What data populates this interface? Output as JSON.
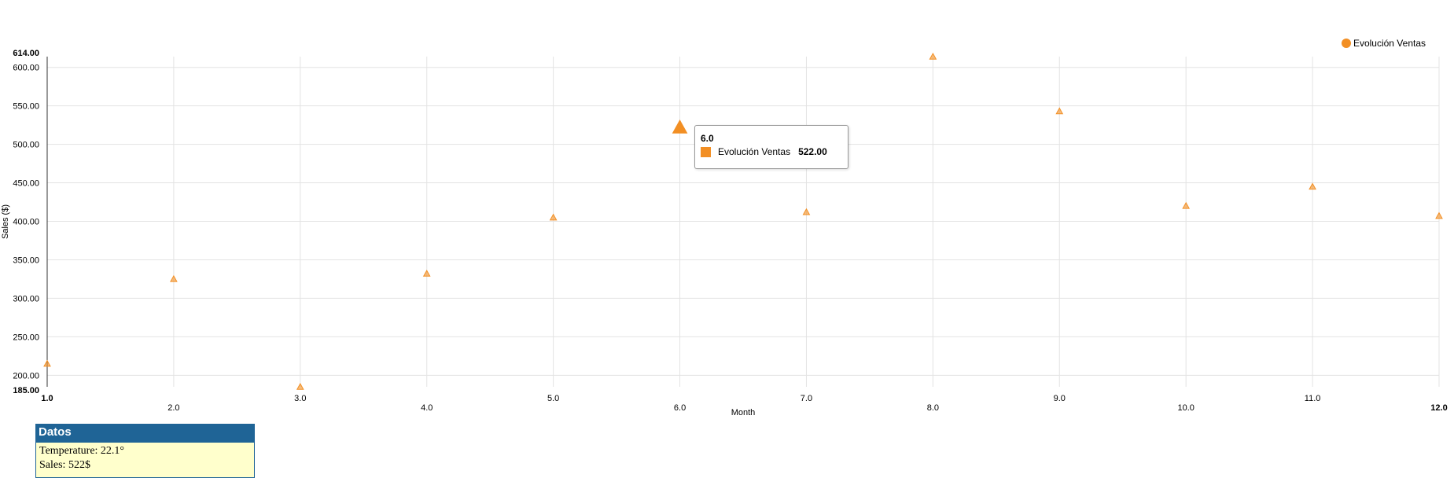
{
  "chart_data": {
    "type": "scatter",
    "xlabel": "Month",
    "ylabel": "Sales ($)",
    "xlim": [
      1.0,
      12.0
    ],
    "ylim": [
      185.0,
      614.0
    ],
    "grid": true,
    "legend_position": "top-right",
    "x_ticks": [
      "1.0",
      "2.0",
      "3.0",
      "4.0",
      "5.0",
      "6.0",
      "7.0",
      "8.0",
      "9.0",
      "10.0",
      "11.0",
      "12.0"
    ],
    "y_ticks": [
      "200.00",
      "250.00",
      "300.00",
      "350.00",
      "400.00",
      "450.00",
      "500.00",
      "550.00",
      "600.00"
    ],
    "y_min_label": "185.00",
    "y_max_label": "614.00",
    "series": [
      {
        "name": "Evolución Ventas",
        "color": "#f28f24",
        "marker": "triangle",
        "x": [
          1.0,
          2.0,
          3.0,
          4.0,
          5.0,
          6.0,
          7.0,
          8.0,
          9.0,
          10.0,
          11.0,
          12.0
        ],
        "values": [
          215,
          325,
          185,
          332,
          405,
          522,
          412,
          614,
          543,
          420,
          445,
          407
        ]
      }
    ]
  },
  "legend": {
    "label": "Evolución Ventas",
    "color": "#f28f24"
  },
  "tooltip": {
    "title": "6.0",
    "series": "Evolución Ventas",
    "value": "522.00",
    "color": "#f28f24"
  },
  "datos": {
    "title": "Datos",
    "temperature": "Temperature: 22.1°",
    "sales": "Sales: 522$"
  }
}
